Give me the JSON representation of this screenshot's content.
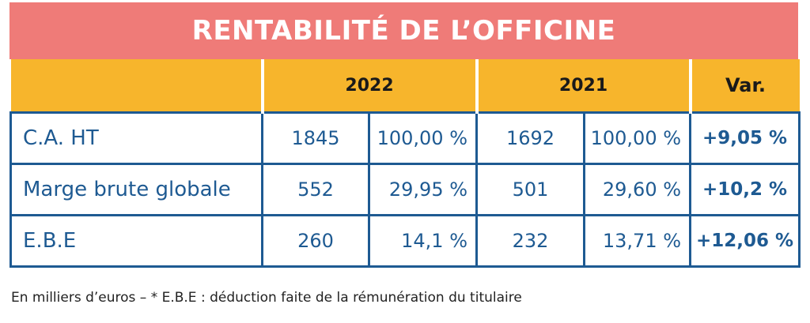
{
  "title": "RENTABILITÉ DE L’OFFICINE",
  "footnote": "En milliers d’euros – * E.B.E : déduction faite de la rémunération du titulaire",
  "colors": {
    "title_bg": "#ef7b78",
    "header_bg": "#f7b52c",
    "text_blue": "#1e5a92"
  },
  "chart_data": {
    "type": "table",
    "title": "RENTABILITÉ DE L’OFFICINE",
    "columns": [
      "",
      "2022",
      "2021",
      "Var."
    ],
    "rows": [
      {
        "label": "C.A. HT",
        "v2022": "1845",
        "p2022": "100,00 %",
        "v2021": "1692",
        "p2021": "100,00 %",
        "var": "+9,05 %"
      },
      {
        "label": "Marge brute globale",
        "v2022": "552",
        "p2022": "29,95 %",
        "v2021": "501",
        "p2021": "29,60 %",
        "var": "+10,2 %"
      },
      {
        "label": "E.B.E",
        "v2022": "260",
        "p2022": "14,1 %",
        "v2021": "232",
        "p2021": "13,71 %",
        "var": "+12,06 %"
      }
    ]
  }
}
